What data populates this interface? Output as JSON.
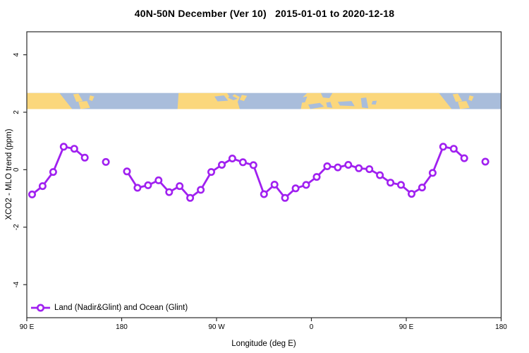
{
  "header": {
    "title": "40N-50N December (Ver 10)   2015-01-01 to 2020-12-18"
  },
  "chart_data": {
    "type": "line",
    "title": "40N-50N December (Ver 10)   2015-01-01 to 2020-12-18",
    "xlabel": "Longitude (deg E)",
    "ylabel": "XCO2 - MLO trend (ppm)",
    "grid": false,
    "frame_color": "#2b2b2b",
    "x_axis": {
      "range_deg": [
        90,
        540
      ],
      "ticks": [
        {
          "deg": 90,
          "label": "90 E"
        },
        {
          "deg": 180,
          "label": "180"
        },
        {
          "deg": 270,
          "label": "90 W"
        },
        {
          "deg": 360,
          "label": "0"
        },
        {
          "deg": 450,
          "label": "90 E"
        },
        {
          "deg": 540,
          "label": "180"
        }
      ]
    },
    "y_axis": {
      "range": [
        -5.15,
        4.8
      ],
      "ticks": [
        {
          "value": 4,
          "label": "4"
        },
        {
          "value": 2,
          "label": "2"
        },
        {
          "value": 0,
          "label": "0"
        },
        {
          "value": -2,
          "label": "-2"
        },
        {
          "value": -4,
          "label": "-4"
        }
      ]
    },
    "legend": {
      "position": "bottom-left",
      "label": "Land (Nadir&Glint) and Ocean (Glint)"
    },
    "series": [
      {
        "name": "Land (Nadir&Glint) and Ocean (Glint)",
        "color": "#A020F0",
        "marker": "open-circle",
        "gap_break_deg": 12,
        "points": [
          {
            "x": 95,
            "y": -0.86
          },
          {
            "x": 105,
            "y": -0.57
          },
          {
            "x": 115,
            "y": -0.08
          },
          {
            "x": 125,
            "y": 0.8
          },
          {
            "x": 135,
            "y": 0.73
          },
          {
            "x": 145,
            "y": 0.42
          },
          {
            "x": 165,
            "y": 0.27
          },
          {
            "x": 185,
            "y": -0.06
          },
          {
            "x": 195,
            "y": -0.63
          },
          {
            "x": 205,
            "y": -0.54
          },
          {
            "x": 215,
            "y": -0.37
          },
          {
            "x": 225,
            "y": -0.78
          },
          {
            "x": 235,
            "y": -0.57
          },
          {
            "x": 245,
            "y": -0.98
          },
          {
            "x": 255,
            "y": -0.7
          },
          {
            "x": 265,
            "y": -0.08
          },
          {
            "x": 275,
            "y": 0.17
          },
          {
            "x": 285,
            "y": 0.39
          },
          {
            "x": 295,
            "y": 0.26
          },
          {
            "x": 305,
            "y": 0.16
          },
          {
            "x": 315,
            "y": -0.85
          },
          {
            "x": 325,
            "y": -0.52
          },
          {
            "x": 335,
            "y": -0.98
          },
          {
            "x": 345,
            "y": -0.65
          },
          {
            "x": 355,
            "y": -0.53
          },
          {
            "x": 365,
            "y": -0.25
          },
          {
            "x": 375,
            "y": 0.12
          },
          {
            "x": 385,
            "y": 0.08
          },
          {
            "x": 395,
            "y": 0.17
          },
          {
            "x": 405,
            "y": 0.05
          },
          {
            "x": 415,
            "y": 0.02
          },
          {
            "x": 425,
            "y": -0.19
          },
          {
            "x": 435,
            "y": -0.45
          },
          {
            "x": 445,
            "y": -0.53
          },
          {
            "x": 455,
            "y": -0.84
          },
          {
            "x": 465,
            "y": -0.62
          },
          {
            "x": 475,
            "y": -0.11
          },
          {
            "x": 485,
            "y": 0.8
          },
          {
            "x": 495,
            "y": 0.73
          },
          {
            "x": 505,
            "y": 0.4
          },
          {
            "x": 525,
            "y": 0.28
          }
        ]
      }
    ],
    "map_band": {
      "description": "coastline strip of the 40N-50N latitude band",
      "y_range_ppm": [
        2.11,
        2.67
      ],
      "ocean_color": "#A9BDDB",
      "land_color": "#FBD77C",
      "land_polygons": [
        [
          [
            90,
            0
          ],
          [
            121,
            0
          ],
          [
            133,
            1
          ],
          [
            90,
            1
          ]
        ],
        [
          [
            134,
            0.08
          ],
          [
            139,
            0.04
          ],
          [
            143,
            0.5
          ],
          [
            137,
            0.55
          ]
        ],
        [
          [
            139,
            0.55
          ],
          [
            147,
            0.5
          ],
          [
            150,
            0.92
          ],
          [
            141,
            1
          ]
        ],
        [
          [
            150,
            0.15
          ],
          [
            154,
            0.22
          ],
          [
            152,
            0.5
          ],
          [
            149,
            0.42
          ]
        ],
        [
          [
            234,
            0
          ],
          [
            280,
            0
          ],
          [
            283,
            0.3
          ],
          [
            287,
            0.08
          ],
          [
            292,
            0.25
          ],
          [
            290,
            0.55
          ],
          [
            292,
            1
          ],
          [
            233,
            1
          ]
        ],
        [
          [
            294,
            0.12
          ],
          [
            299,
            0.18
          ],
          [
            296,
            0.5
          ],
          [
            292,
            0.42
          ]
        ],
        [
          [
            352,
            0.25
          ],
          [
            356,
            0
          ],
          [
            481,
            0
          ],
          [
            493,
            1
          ],
          [
            350,
            1
          ]
        ],
        [
          [
            494,
            0.08
          ],
          [
            499,
            0.04
          ],
          [
            503,
            0.5
          ],
          [
            497,
            0.55
          ]
        ],
        [
          [
            499,
            0.55
          ],
          [
            507,
            0.5
          ],
          [
            510,
            0.92
          ],
          [
            501,
            1
          ]
        ],
        [
          [
            510,
            0.15
          ],
          [
            514,
            0.22
          ],
          [
            512,
            0.5
          ],
          [
            509,
            0.42
          ]
        ]
      ],
      "water_patches": [
        [
          [
            350,
            0.28
          ],
          [
            356,
            0.22
          ],
          [
            354,
            0.58
          ],
          [
            349,
            0.62
          ]
        ],
        [
          [
            369,
            0
          ],
          [
            380,
            0
          ],
          [
            377,
            0.32
          ],
          [
            371,
            0.28
          ]
        ],
        [
          [
            357,
            0.72
          ],
          [
            368,
            0.62
          ],
          [
            372,
            0.85
          ],
          [
            359,
            1
          ]
        ],
        [
          [
            374,
            0.6
          ],
          [
            378,
            0.55
          ],
          [
            380,
            0.92
          ],
          [
            375,
            0.88
          ]
        ],
        [
          [
            385,
            0.55
          ],
          [
            398,
            0.5
          ],
          [
            401,
            0.82
          ],
          [
            387,
            0.78
          ]
        ],
        [
          [
            407,
            0.32
          ],
          [
            412,
            0.28
          ],
          [
            414,
            0.95
          ],
          [
            408,
            0.9
          ]
        ],
        [
          [
            418,
            0.5
          ],
          [
            422,
            0.48
          ],
          [
            421,
            0.72
          ],
          [
            417,
            0.7
          ]
        ],
        [
          [
            268,
            0.22
          ],
          [
            277,
            0.15
          ],
          [
            281,
            0.48
          ],
          [
            271,
            0.52
          ]
        ],
        [
          [
            283,
            0.12
          ],
          [
            290,
            0.35
          ],
          [
            286,
            0.45
          ],
          [
            281,
            0.3
          ]
        ]
      ]
    }
  }
}
